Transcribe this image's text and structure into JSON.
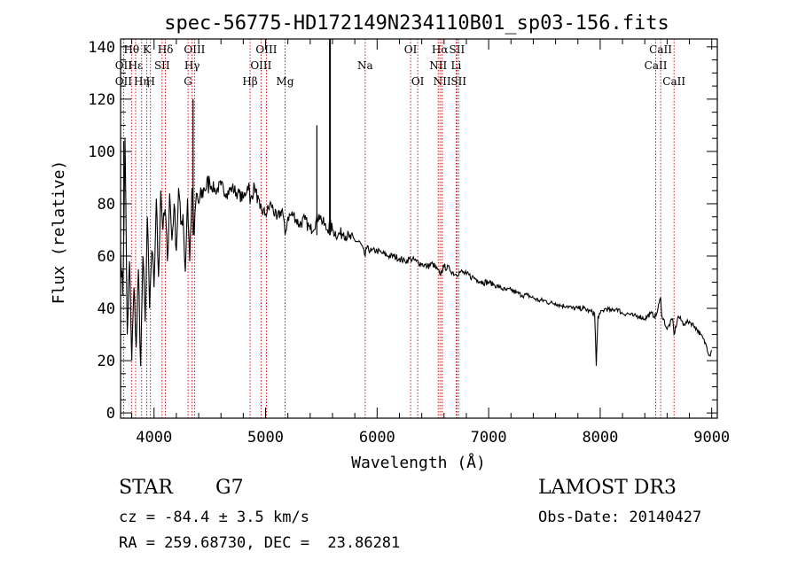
{
  "chart_data": {
    "type": "line",
    "title": "spec-56775-HD172149N234110B01_sp03-156.fits",
    "xlabel": "Wavelength (Å)",
    "ylabel": "Flux (relative)",
    "xlim": [
      3700,
      9050
    ],
    "ylim": [
      -2,
      143
    ],
    "xticks": [
      4000,
      5000,
      6000,
      7000,
      8000,
      9000
    ],
    "yticks": [
      0,
      20,
      40,
      60,
      80,
      100,
      120,
      140
    ],
    "series": [
      {
        "name": "flux",
        "x": [
          3700,
          3720,
          3740,
          3760,
          3780,
          3800,
          3820,
          3840,
          3860,
          3880,
          3900,
          3920,
          3940,
          3960,
          3980,
          4000,
          4020,
          4040,
          4060,
          4080,
          4100,
          4120,
          4140,
          4160,
          4180,
          4200,
          4220,
          4240,
          4260,
          4280,
          4300,
          4320,
          4340,
          4360,
          4380,
          4400,
          4450,
          4500,
          4550,
          4600,
          4650,
          4700,
          4750,
          4800,
          4850,
          4861,
          4900,
          4950,
          5000,
          5050,
          5100,
          5150,
          5175,
          5200,
          5250,
          5300,
          5350,
          5400,
          5450,
          5480,
          5500,
          5550,
          5577,
          5600,
          5650,
          5700,
          5750,
          5800,
          5850,
          5893,
          5900,
          5950,
          6000,
          6050,
          6100,
          6150,
          6200,
          6250,
          6300,
          6350,
          6400,
          6450,
          6500,
          6563,
          6600,
          6650,
          6700,
          6750,
          6800,
          6850,
          6900,
          6950,
          7000,
          7050,
          7100,
          7150,
          7200,
          7250,
          7300,
          7350,
          7400,
          7450,
          7500,
          7550,
          7600,
          7650,
          7700,
          7750,
          7800,
          7850,
          7900,
          7950,
          7965,
          7980,
          8000,
          8050,
          8100,
          8150,
          8200,
          8250,
          8300,
          8350,
          8400,
          8450,
          8500,
          8542,
          8550,
          8600,
          8650,
          8662,
          8700,
          8750,
          8800,
          8850,
          8900,
          8950,
          8980,
          9000
        ],
        "y": [
          62,
          45,
          105,
          30,
          58,
          20,
          48,
          25,
          55,
          18,
          60,
          35,
          75,
          40,
          62,
          48,
          82,
          52,
          85,
          70,
          78,
          58,
          84,
          66,
          80,
          62,
          86,
          72,
          76,
          54,
          82,
          58,
          86,
          68,
          84,
          80,
          86,
          88,
          85,
          87,
          84,
          86,
          84,
          82,
          88,
          80,
          87,
          78,
          76,
          80,
          74,
          78,
          68,
          75,
          76,
          72,
          74,
          70,
          73,
          76,
          74,
          70,
          72,
          70,
          68,
          69,
          67,
          66,
          65,
          60,
          63,
          62,
          62,
          61,
          60,
          60,
          59,
          58,
          59,
          58,
          57,
          56,
          57,
          53,
          56,
          55,
          53,
          54,
          53,
          52,
          51,
          50,
          50,
          49,
          48,
          47,
          47,
          46,
          45,
          45,
          44,
          43,
          43,
          42,
          42,
          41,
          41,
          40,
          40,
          40,
          39,
          38,
          18,
          37,
          38,
          40,
          39,
          40,
          38,
          38,
          37,
          37,
          36,
          38,
          37,
          44,
          38,
          32,
          36,
          30,
          37,
          34,
          35,
          33,
          30,
          26,
          22,
          24
        ]
      }
    ],
    "spikes": [
      {
        "x": 5577,
        "y": 143
      },
      {
        "x": 5460,
        "y": 110
      },
      {
        "x": 4350,
        "y": 120
      },
      {
        "x": 3728,
        "y": 104
      }
    ],
    "line_markers": [
      {
        "label": "Hθ",
        "x": 3798,
        "row": 1
      },
      {
        "label": "OII",
        "x": 3727,
        "row": 2
      },
      {
        "label": "OII",
        "x": 3727,
        "row": 3
      },
      {
        "label": "Hε",
        "x": 3835,
        "row": 2
      },
      {
        "label": "Hη",
        "x": 3889,
        "row": 3
      },
      {
        "label": "K",
        "x": 3934,
        "row": 1
      },
      {
        "label": "H",
        "x": 3968,
        "row": 3
      },
      {
        "label": "Hδ",
        "x": 4102,
        "row": 1
      },
      {
        "label": "SII",
        "x": 4072,
        "row": 2
      },
      {
        "label": "OIII",
        "x": 4363,
        "row": 1
      },
      {
        "label": "Hγ",
        "x": 4341,
        "row": 2
      },
      {
        "label": "G",
        "x": 4305,
        "row": 3
      },
      {
        "label": "Hβ",
        "x": 4861,
        "row": 3
      },
      {
        "label": "OIII",
        "x": 5007,
        "row": 1
      },
      {
        "label": "OIII",
        "x": 4959,
        "row": 2
      },
      {
        "label": "Mg",
        "x": 5175,
        "row": 3
      },
      {
        "label": "Na",
        "x": 5893,
        "row": 2
      },
      {
        "label": "OI",
        "x": 6300,
        "row": 1
      },
      {
        "label": "OI",
        "x": 6364,
        "row": 3
      },
      {
        "label": "Hα",
        "x": 6563,
        "row": 1
      },
      {
        "label": "NII",
        "x": 6548,
        "row": 2
      },
      {
        "label": "NII",
        "x": 6583,
        "row": 3
      },
      {
        "label": "SII",
        "x": 6716,
        "row": 1
      },
      {
        "label": "Li",
        "x": 6708,
        "row": 2
      },
      {
        "label": "SII",
        "x": 6731,
        "row": 3
      },
      {
        "label": "CaII",
        "x": 8542,
        "row": 1
      },
      {
        "label": "CaII",
        "x": 8498,
        "row": 2
      },
      {
        "label": "CaII",
        "x": 8662,
        "row": 3
      }
    ]
  },
  "info": {
    "object_type": "STAR",
    "subclass": "G7",
    "redshift": "cz = -84.4 ± 3.5 km/s",
    "coordinates": "RA = 259.68730, DEC =  23.86281",
    "survey": "LAMOST DR3",
    "obs_date": "Obs-Date: 20140427"
  },
  "colors": {
    "line_marker": "#cc0000",
    "spectrum": "#000000",
    "axes": "#000000"
  }
}
